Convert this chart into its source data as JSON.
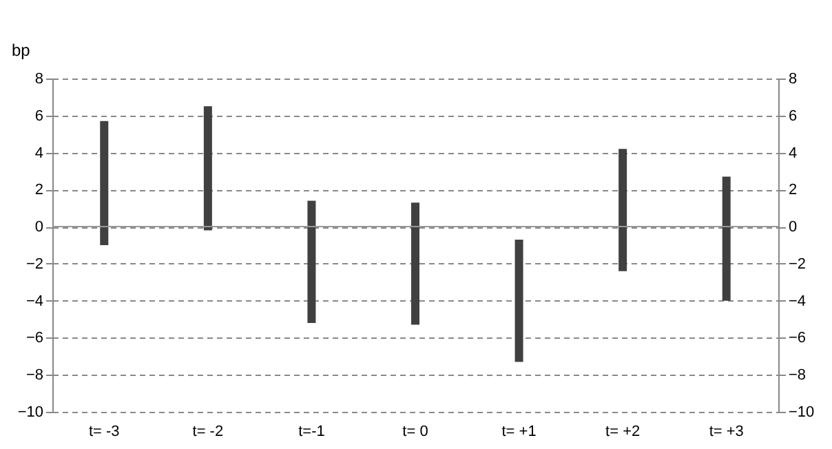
{
  "chart_data": {
    "type": "bar",
    "ylabel": "bp",
    "categories": [
      "t= -3",
      "t= -2",
      "t=-1",
      "t= 0",
      "t= +1",
      "t= +2",
      "t= +3"
    ],
    "series": [
      {
        "color": "#404040",
        "base": [
          -1.0,
          -0.2,
          -5.2,
          -5.3,
          -7.3,
          -2.4,
          -4.0
        ],
        "values": [
          6.7,
          6.7,
          6.6,
          6.6,
          6.6,
          6.6,
          6.7
        ]
      }
    ],
    "ylim": [
      -10,
      8
    ],
    "yticks": [
      -10,
      -8,
      -6,
      -4,
      -2,
      0,
      2,
      4,
      6,
      8
    ],
    "y2lim": [
      -10,
      8
    ],
    "y2ticks": [
      -10,
      -8,
      -6,
      -4,
      -2,
      0,
      2,
      4,
      6,
      8
    ],
    "ref_lines": [
      {
        "axis": "y2",
        "value": 0,
        "color": "#999999",
        "line_style": "solid"
      }
    ],
    "grid": "y",
    "line_style": "dashed"
  }
}
